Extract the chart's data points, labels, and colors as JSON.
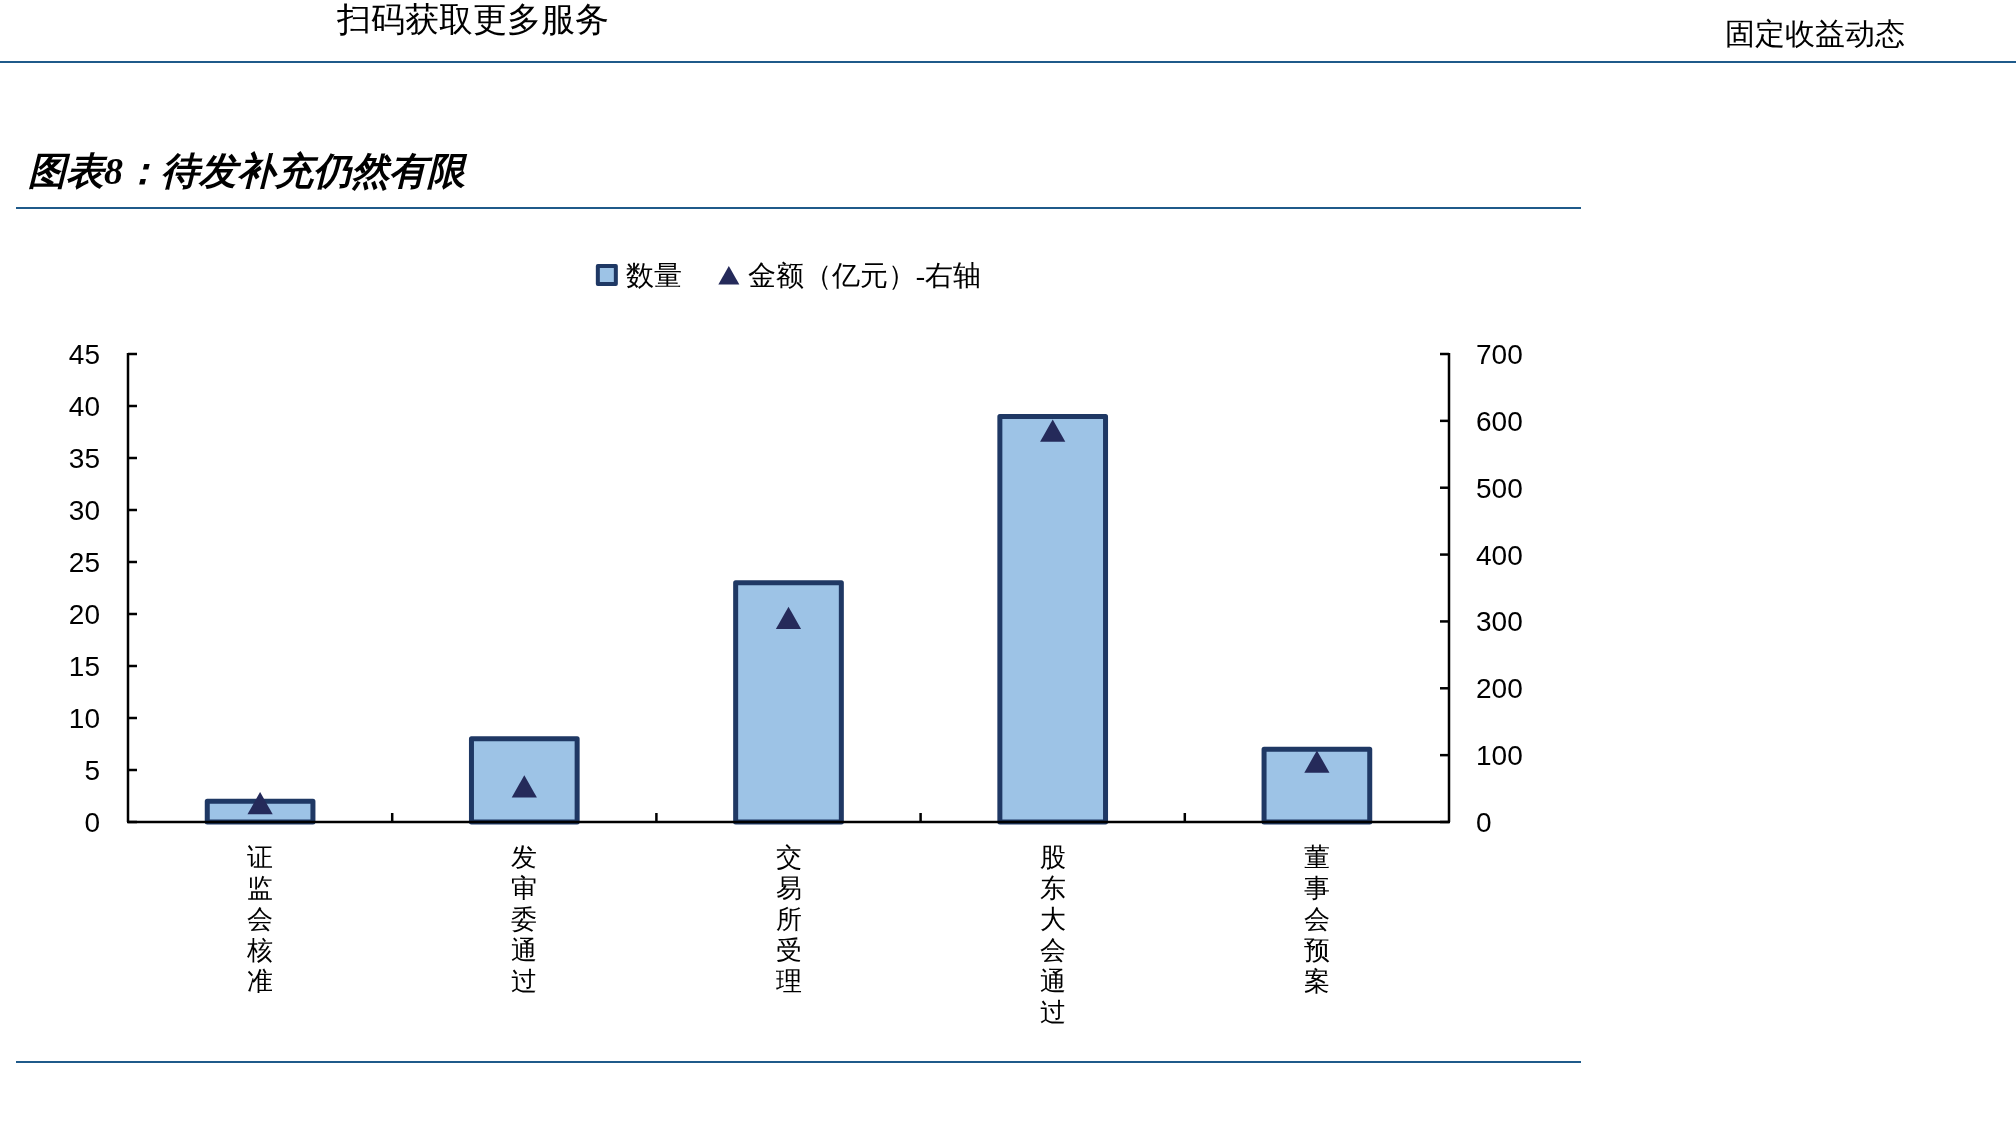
{
  "chart_data": {
    "type": "bar",
    "title": "图表8：待发补充仍然有限",
    "annotations": [
      "扫码获取更多服务",
      "固定收益动态"
    ],
    "categories": [
      "证监会核准",
      "发审委通过",
      "交易所受理",
      "股东大会通过",
      "董事会预案"
    ],
    "series": [
      {
        "name": "数量",
        "color": "#9dc3e6",
        "values": [
          2,
          8,
          23,
          39,
          7
        ]
      },
      {
        "name": "金额（亿元）-右轴",
        "type": "scatter",
        "axis": "y2",
        "color": "#252a5a",
        "values": [
          27,
          52,
          304,
          584,
          89
        ]
      }
    ],
    "ylim": [
      0,
      45
    ],
    "yticks": [
      0,
      5,
      10,
      15,
      20,
      25,
      30,
      35,
      40,
      45
    ],
    "y2lim": [
      0,
      700
    ],
    "y2ticks": [
      0,
      100,
      200,
      300,
      400,
      500,
      600,
      700
    ],
    "marker": "triangle",
    "legend": "top"
  }
}
